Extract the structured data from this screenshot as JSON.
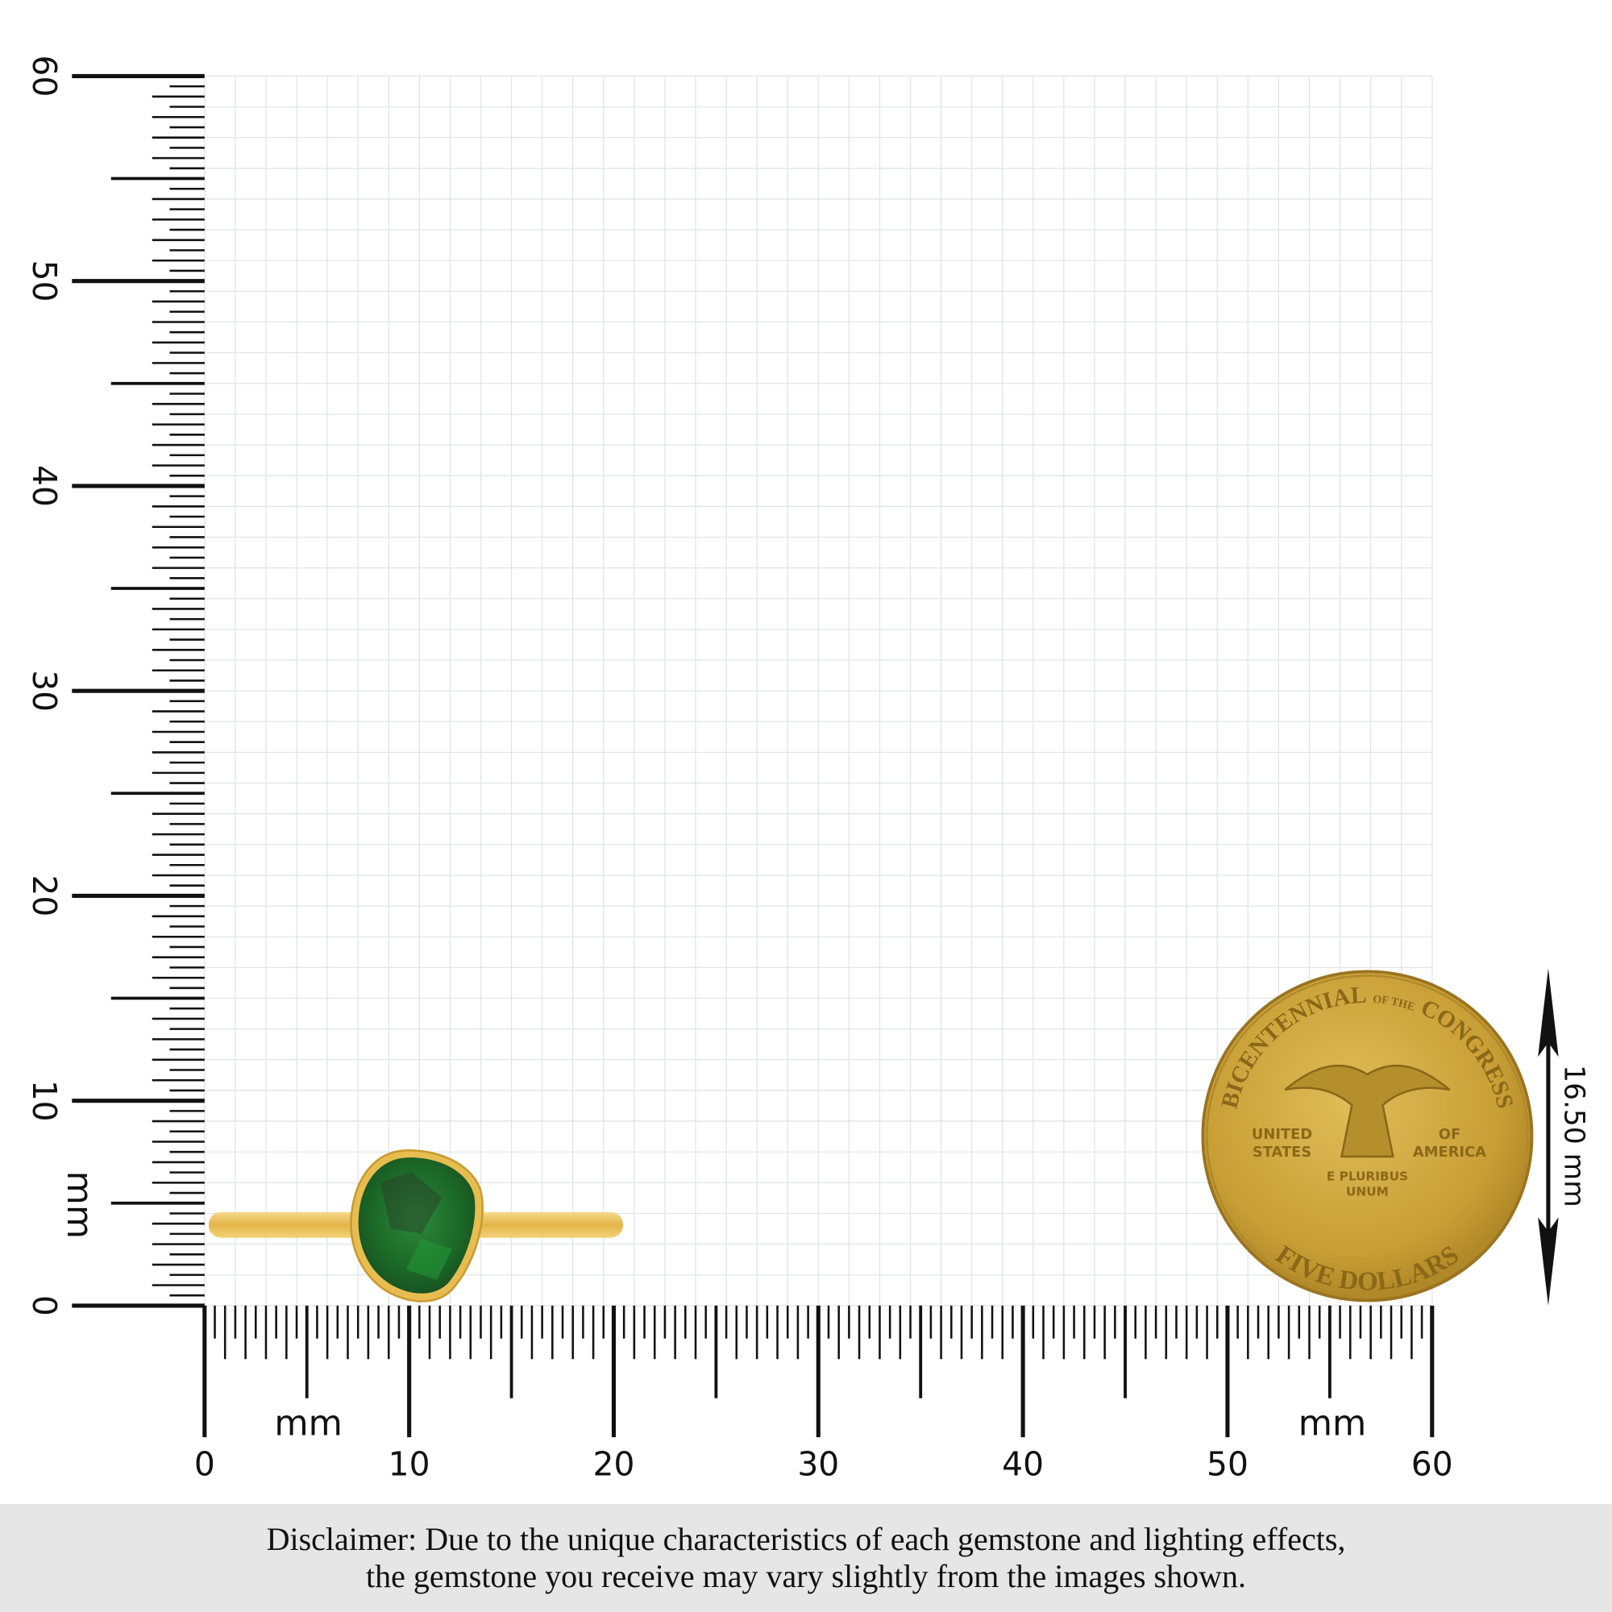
{
  "ruler": {
    "unit": "mm",
    "range": [
      0,
      60
    ],
    "labels": [
      "0",
      "10",
      "20",
      "30",
      "40",
      "50",
      "60"
    ],
    "major_step": 10,
    "mid_step": 5,
    "minor_step": 0.5
  },
  "grid": {
    "color": "#e2e4e6"
  },
  "product": {
    "type": "ring",
    "metal_color": "#e8bf57",
    "stone_color": "#1f7a2e"
  },
  "coin": {
    "top_text": "BICENTENNIAL",
    "of_the": "OF THE",
    "right_text": "CONGRESS",
    "left_middle": [
      "UNITED",
      "STATES"
    ],
    "right_middle": [
      "OF",
      "AMERICA"
    ],
    "motto": [
      "E PLURIBUS",
      "UNUM"
    ],
    "bottom_text": "FIVE DOLLARS",
    "color": "#c9a23a"
  },
  "dimension": {
    "label": "16.50 mm"
  },
  "disclaimer": {
    "line1": "Disclaimer: Due to the unique characteristics of each gemstone and lighting effects,",
    "line2": "the gemstone you receive may vary slightly from the images shown."
  }
}
